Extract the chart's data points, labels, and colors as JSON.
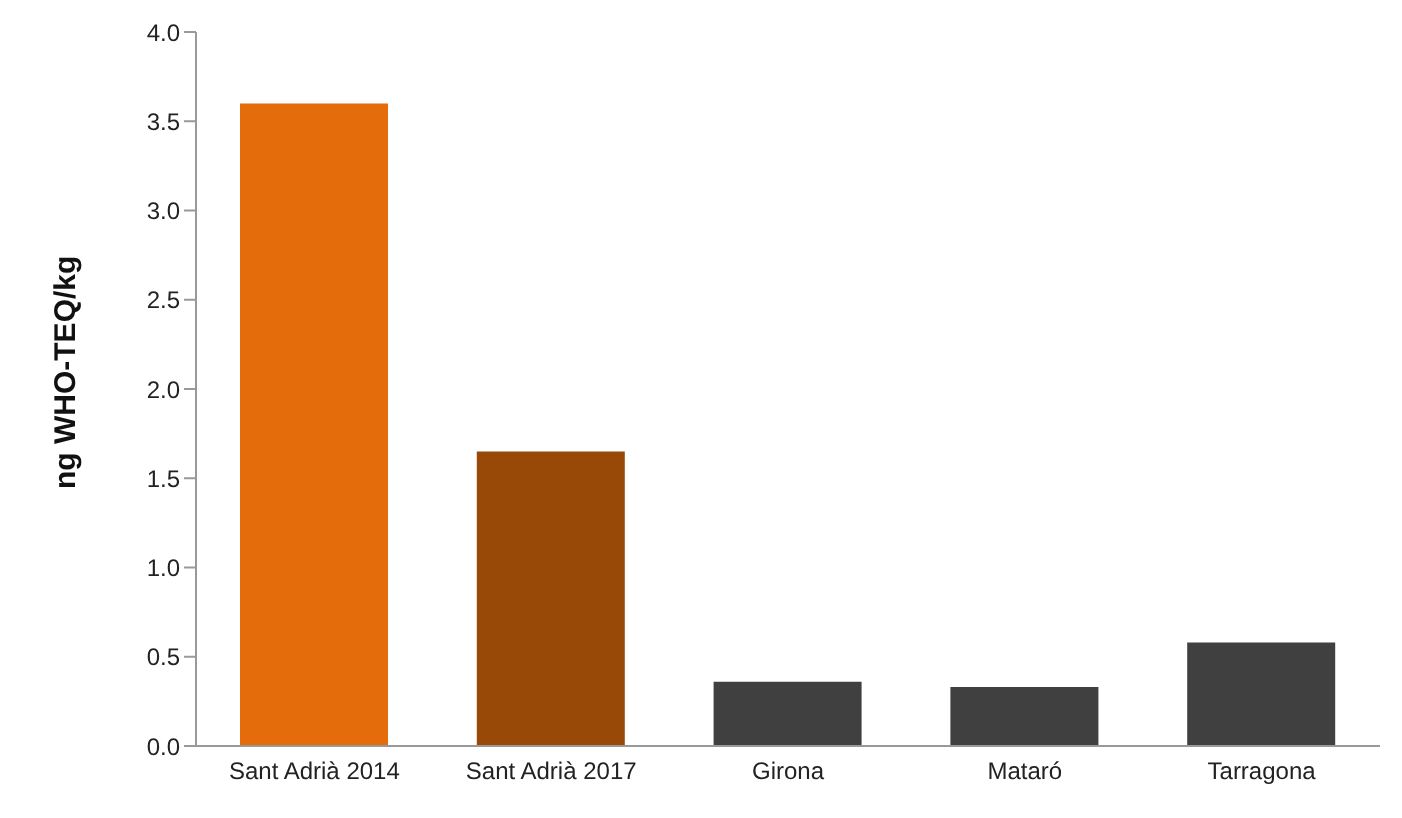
{
  "chart_data": {
    "type": "bar",
    "ylabel": "ng WHO-TEQ/kg",
    "categories": [
      "Sant Adrià 2014",
      "Sant Adrià 2017",
      "Girona",
      "Mataró",
      "Tarragona"
    ],
    "values": [
      3.6,
      1.65,
      0.36,
      0.33,
      0.58
    ],
    "colors": [
      "#e46c0a",
      "#984807",
      "#404040",
      "#404040",
      "#404040"
    ],
    "ylim": [
      0,
      4
    ],
    "yticks": [
      {
        "value": 0,
        "label": "0.0"
      },
      {
        "value": 0.5,
        "label": "0.5"
      },
      {
        "value": 1,
        "label": "1.0"
      },
      {
        "value": 1.5,
        "label": "1.5"
      },
      {
        "value": 2,
        "label": "2.0"
      },
      {
        "value": 2.5,
        "label": "2.5"
      },
      {
        "value": 3,
        "label": "3.0"
      },
      {
        "value": 3.5,
        "label": "3.5"
      },
      {
        "value": 4,
        "label": "4.0"
      }
    ],
    "grid": false,
    "legend": false
  }
}
